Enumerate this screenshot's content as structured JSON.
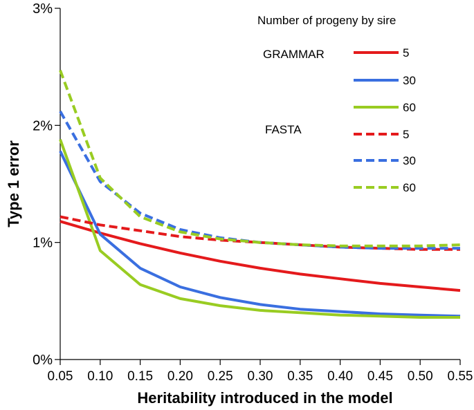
{
  "chart_data": {
    "type": "line",
    "title": "",
    "xlabel": "Heritability introduced in the model",
    "ylabel": "Type 1 error",
    "x": [
      0.05,
      0.1,
      0.15,
      0.2,
      0.25,
      0.3,
      0.35,
      0.4,
      0.45,
      0.5,
      0.55
    ],
    "xticks": [
      "0.05",
      "0.10",
      "0.15",
      "0.20",
      "0.25",
      "0.30",
      "0.35",
      "0.40",
      "0.45",
      "0.50",
      "0.55"
    ],
    "xlim": [
      0.05,
      0.55
    ],
    "yticks": [
      "0%",
      "1%",
      "2%",
      "3%"
    ],
    "yticks_values": [
      0,
      1,
      2,
      3
    ],
    "ylim": [
      0,
      3
    ],
    "legend_title": "Number of progeny by sire",
    "groups": [
      {
        "name": "GRAMMAR",
        "style": "solid"
      },
      {
        "name": "FASTA",
        "style": "dashed"
      }
    ],
    "series": [
      {
        "name": "5",
        "group": "GRAMMAR",
        "style": "solid",
        "color": "#e41a1c",
        "values": [
          1.18,
          1.08,
          0.99,
          0.91,
          0.84,
          0.78,
          0.73,
          0.69,
          0.65,
          0.62,
          0.59
        ]
      },
      {
        "name": "30",
        "group": "GRAMMAR",
        "style": "solid",
        "color": "#3a6fe0",
        "values": [
          1.78,
          1.07,
          0.78,
          0.62,
          0.53,
          0.47,
          0.43,
          0.41,
          0.39,
          0.38,
          0.37
        ]
      },
      {
        "name": "60",
        "group": "GRAMMAR",
        "style": "solid",
        "color": "#99cc22",
        "values": [
          1.88,
          0.93,
          0.64,
          0.52,
          0.46,
          0.42,
          0.4,
          0.38,
          0.37,
          0.36,
          0.36
        ]
      },
      {
        "name": "5",
        "group": "FASTA",
        "style": "dashed",
        "color": "#e41a1c",
        "values": [
          1.22,
          1.15,
          1.1,
          1.05,
          1.02,
          1.0,
          0.98,
          0.96,
          0.95,
          0.94,
          0.94
        ]
      },
      {
        "name": "30",
        "group": "FASTA",
        "style": "dashed",
        "color": "#3a6fe0",
        "values": [
          2.12,
          1.52,
          1.25,
          1.11,
          1.04,
          1.0,
          0.98,
          0.96,
          0.95,
          0.95,
          0.95
        ]
      },
      {
        "name": "60",
        "group": "FASTA",
        "style": "dashed",
        "color": "#99cc22",
        "values": [
          2.47,
          1.55,
          1.22,
          1.09,
          1.03,
          1.0,
          0.98,
          0.97,
          0.97,
          0.97,
          0.98
        ]
      }
    ]
  }
}
